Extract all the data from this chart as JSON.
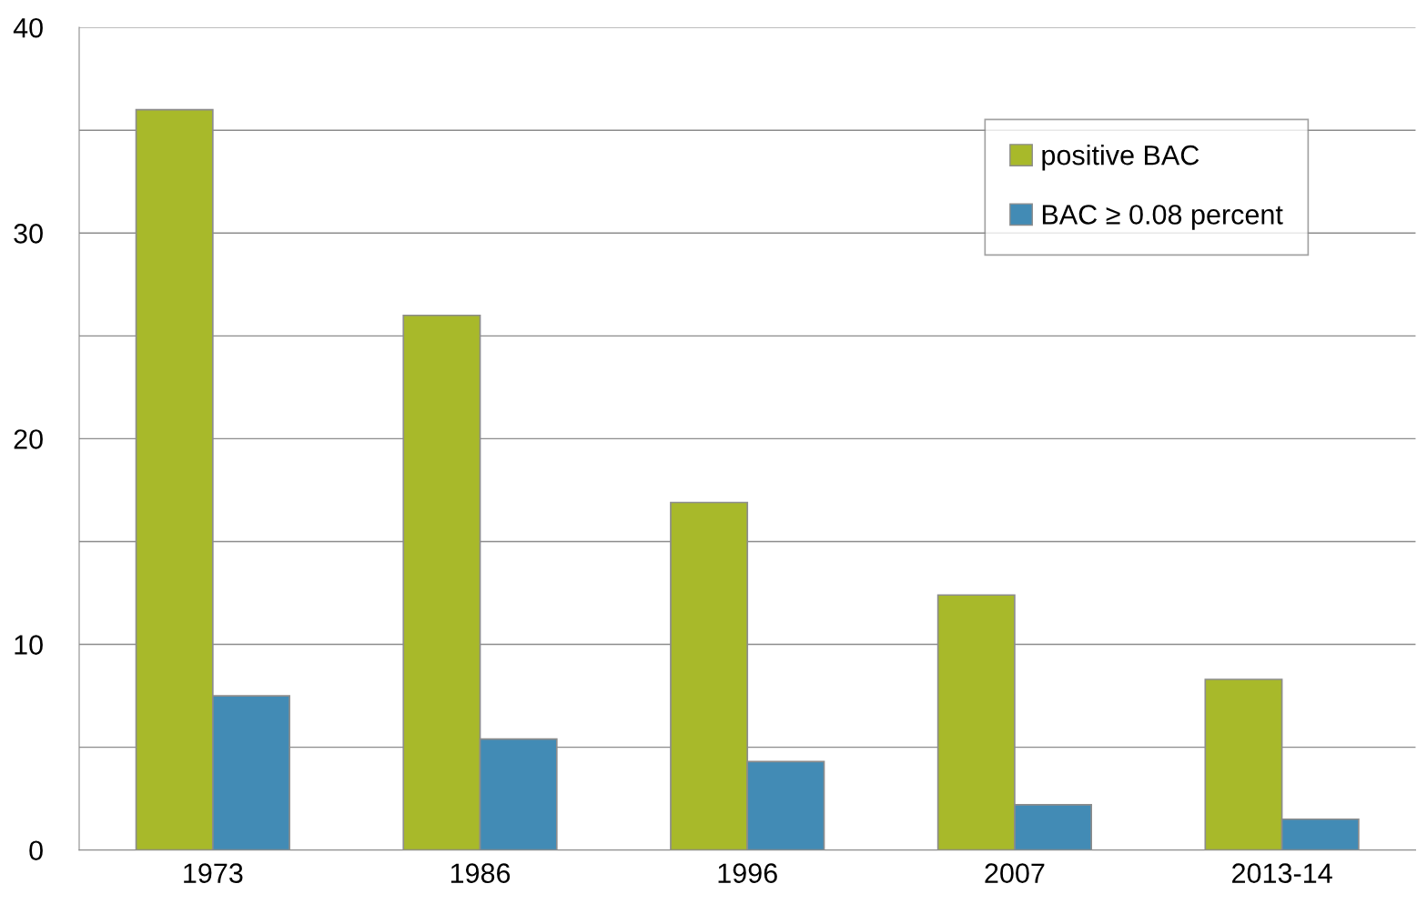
{
  "chart_data": {
    "type": "bar",
    "categories": [
      "1973",
      "1986",
      "1996",
      "2007",
      "2013-14"
    ],
    "series": [
      {
        "name": "positive BAC",
        "color": "#a8b92a",
        "values": [
          36,
          26,
          16.9,
          12.4,
          8.3
        ]
      },
      {
        "name": "BAC ≥ 0.08 percent",
        "color": "#428bb5",
        "values": [
          7.5,
          5.4,
          4.3,
          2.2,
          1.5
        ]
      }
    ],
    "ylim": [
      0,
      40
    ],
    "yticks": [
      0,
      {
        "value": 5,
        "label": null
      },
      10,
      {
        "value": 15,
        "label": null
      },
      20,
      {
        "value": 25,
        "label": null
      },
      30,
      {
        "value": 35,
        "label": null
      },
      40
    ],
    "grid": "y",
    "legend": "top right"
  }
}
